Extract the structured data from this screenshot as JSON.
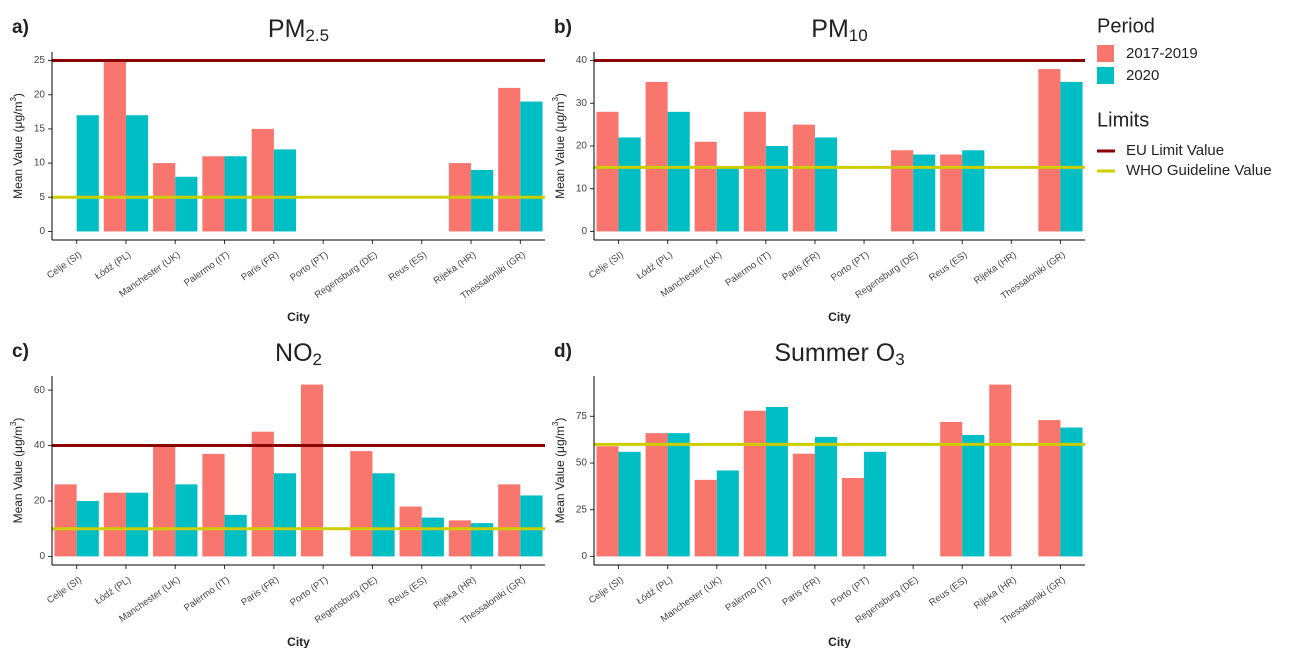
{
  "chart_data": [
    {
      "type": "bar",
      "panel": "a)",
      "title": "PM",
      "title_sub": "2.5",
      "ylabel": "Mean Value (μg/m",
      "ylabel_sup": "3",
      "ylabel_end": ")",
      "xlabel": "City",
      "categories": [
        "Celje (SI)",
        "Łódź (PL)",
        "Manchester (UK)",
        "Palermo (IT)",
        "Paris (FR)",
        "Porto (PT)",
        "Regensburg (DE)",
        "Reus (ES)",
        "Rijeka (HR)",
        "Thessaloniki (GR)"
      ],
      "series": [
        {
          "color": "#f8766d",
          "values": [
            null,
            25,
            10,
            11,
            15,
            null,
            null,
            null,
            10,
            21
          ]
        },
        {
          "color": "#00bfc4",
          "values": [
            17,
            17,
            8,
            11,
            12,
            null,
            null,
            null,
            9,
            19
          ]
        }
      ],
      "hlines": [
        {
          "value": 25,
          "color": "#8b0000"
        },
        {
          "value": 5,
          "color": "#cdcd00"
        }
      ],
      "ylim": [
        -1.25,
        26.25
      ],
      "yticks": [
        0,
        5,
        10,
        15,
        20,
        25
      ]
    },
    {
      "type": "bar",
      "panel": "b)",
      "title": "PM",
      "title_sub": "10",
      "ylabel": "Mean Value (μg/m",
      "ylabel_sup": "3",
      "ylabel_end": ")",
      "xlabel": "City",
      "categories": [
        "Celje (SI)",
        "Łódź (PL)",
        "Manchester (UK)",
        "Palermo (IT)",
        "Paris (FR)",
        "Porto (PT)",
        "Regensburg (DE)",
        "Reus (ES)",
        "Rijeka (HR)",
        "Thessaloniki (GR)"
      ],
      "series": [
        {
          "color": "#f8766d",
          "values": [
            28,
            35,
            21,
            28,
            25,
            null,
            19,
            18,
            null,
            38
          ]
        },
        {
          "color": "#00bfc4",
          "values": [
            22,
            28,
            15,
            20,
            22,
            null,
            18,
            19,
            null,
            35
          ]
        }
      ],
      "hlines": [
        {
          "value": 40,
          "color": "#8b0000"
        },
        {
          "value": 15,
          "color": "#cdcd00"
        }
      ],
      "ylim": [
        -2,
        42
      ],
      "yticks": [
        0,
        10,
        20,
        30,
        40
      ]
    },
    {
      "type": "bar",
      "panel": "c)",
      "title": "NO",
      "title_sub": "2",
      "ylabel": "Mean Value (μg/m",
      "ylabel_sup": "3",
      "ylabel_end": ")",
      "xlabel": "City",
      "categories": [
        "Celje (SI)",
        "Łódź (PL)",
        "Manchester (UK)",
        "Palermo (IT)",
        "Paris (FR)",
        "Porto (PT)",
        "Regensburg (DE)",
        "Reus (ES)",
        "Rijeka (HR)",
        "Thessaloniki (GR)"
      ],
      "series": [
        {
          "color": "#f8766d",
          "values": [
            26,
            23,
            40,
            37,
            45,
            62,
            38,
            18,
            13,
            26
          ]
        },
        {
          "color": "#00bfc4",
          "values": [
            20,
            23,
            26,
            15,
            30,
            null,
            30,
            14,
            12,
            22
          ]
        }
      ],
      "hlines": [
        {
          "value": 40,
          "color": "#8b0000"
        },
        {
          "value": 10,
          "color": "#cdcd00"
        }
      ],
      "ylim": [
        -3.1,
        65.1
      ],
      "yticks": [
        0,
        20,
        40,
        60
      ]
    },
    {
      "type": "bar",
      "panel": "d)",
      "title": "Summer O",
      "title_sub": "3",
      "ylabel": "Mean Value (μg/m",
      "ylabel_sup": "3",
      "ylabel_end": ")",
      "xlabel": "City",
      "categories": [
        "Celje (SI)",
        "Łódź (PL)",
        "Manchester (UK)",
        "Palermo (IT)",
        "Paris (FR)",
        "Porto (PT)",
        "Regensburg (DE)",
        "Reus (ES)",
        "Rijeka (HR)",
        "Thessaloniki (GR)"
      ],
      "series": [
        {
          "color": "#f8766d",
          "values": [
            59,
            66,
            41,
            78,
            55,
            42,
            null,
            72,
            92,
            73
          ]
        },
        {
          "color": "#00bfc4",
          "values": [
            56,
            66,
            46,
            80,
            64,
            56,
            null,
            65,
            null,
            69
          ]
        }
      ],
      "hlines": [
        {
          "value": 60,
          "color": "#cdcd00"
        }
      ],
      "ylim": [
        -4.6,
        96.6
      ],
      "yticks": [
        0,
        25,
        50,
        75
      ]
    }
  ],
  "legend": {
    "title": "Period",
    "items": [
      {
        "name": "2017-2019",
        "color": "#f8766d"
      },
      {
        "name": "2020",
        "color": "#00bfc4"
      }
    ]
  },
  "limits_legend": {
    "title": "Limits",
    "items": [
      {
        "name": "EU  Limit Value",
        "color": "#8b0000"
      },
      {
        "name": "WHO Guideline Value",
        "color": "#cdcd00"
      }
    ]
  }
}
